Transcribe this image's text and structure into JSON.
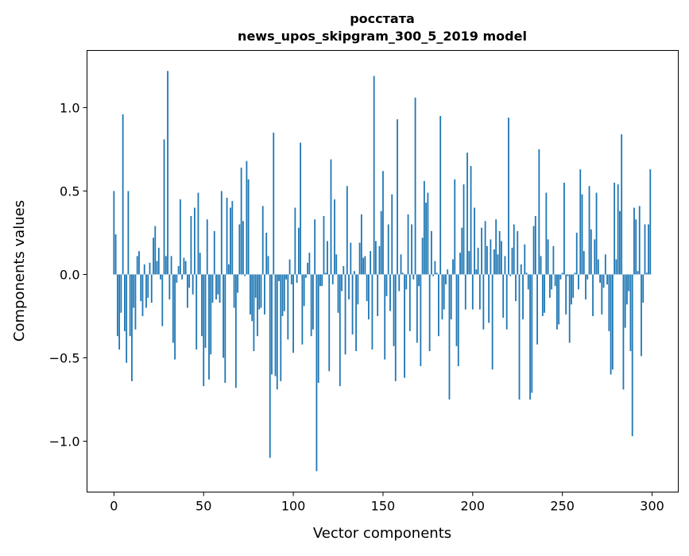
{
  "chart_data": {
    "type": "bar",
    "title": "росстата",
    "subtitle": "news_upos_skipgram_300_5_2019 model",
    "xlabel": "Vector components",
    "ylabel": "Components values",
    "xlim": [
      -15,
      314.6
    ],
    "ylim": [
      -1.305,
      1.343
    ],
    "xticks": [
      0,
      50,
      100,
      150,
      200,
      250,
      300
    ],
    "xtick_labels": [
      "0",
      "50",
      "100",
      "150",
      "200",
      "250",
      "300"
    ],
    "yticks": [
      -1.0,
      -0.5,
      0.0,
      0.5,
      1.0
    ],
    "ytick_labels": [
      "−1.0",
      "−0.5",
      "0.0",
      "0.5",
      "1.0"
    ],
    "grid": false,
    "bar_color": "#1f77b4",
    "values": [
      0.5,
      0.24,
      -0.37,
      -0.45,
      -0.23,
      0.96,
      -0.34,
      -0.53,
      0.5,
      -0.37,
      -0.64,
      -0.2,
      -0.33,
      0.11,
      0.14,
      -0.16,
      -0.25,
      0.06,
      -0.2,
      -0.14,
      0.07,
      -0.17,
      0.22,
      0.29,
      0.08,
      0.16,
      -0.03,
      -0.31,
      0.81,
      0.11,
      1.22,
      -0.15,
      0.11,
      -0.41,
      -0.51,
      -0.05,
      0.05,
      0.45,
      -0.03,
      0.1,
      0.08,
      -0.2,
      -0.08,
      0.35,
      -0.12,
      0.4,
      -0.45,
      0.49,
      0.13,
      -0.37,
      -0.67,
      -0.44,
      0.33,
      -0.63,
      -0.48,
      -0.17,
      0.26,
      -0.15,
      -0.12,
      -0.17,
      0.5,
      -0.5,
      -0.65,
      0.46,
      0.06,
      0.4,
      0.44,
      -0.2,
      -0.68,
      -0.11,
      0.3,
      0.64,
      0.32,
      -0.01,
      0.68,
      0.57,
      -0.24,
      -0.28,
      -0.46,
      -0.14,
      -0.37,
      -0.21,
      -0.2,
      0.41,
      -0.24,
      0.25,
      0.11,
      -1.1,
      -0.6,
      0.85,
      -0.61,
      -0.69,
      -0.04,
      -0.64,
      -0.25,
      -0.22,
      -0.03,
      -0.39,
      0.09,
      -0.06,
      -0.47,
      0.4,
      -0.05,
      0.28,
      0.79,
      -0.42,
      -0.19,
      -0.02,
      0.07,
      0.13,
      -0.37,
      -0.33,
      0.33,
      -1.18,
      -0.65,
      -0.07,
      -0.07,
      0.35,
      0.01,
      0.2,
      -0.58,
      0.69,
      -0.06,
      0.45,
      0.12,
      -0.23,
      -0.67,
      -0.1,
      0.05,
      -0.48,
      0.53,
      -0.15,
      0.19,
      -0.36,
      0.02,
      -0.46,
      -0.18,
      0.19,
      0.36,
      0.1,
      0.11,
      -0.16,
      -0.27,
      0.14,
      -0.45,
      1.19,
      0.2,
      -0.25,
      0.17,
      0.38,
      0.62,
      -0.51,
      -0.13,
      0.3,
      -0.22,
      0.48,
      -0.43,
      -0.64,
      0.93,
      -0.1,
      0.12,
      0.01,
      -0.62,
      -0.09,
      0.36,
      -0.34,
      0.3,
      -0.03,
      1.06,
      -0.41,
      -0.07,
      -0.55,
      0.22,
      0.56,
      0.43,
      0.49,
      -0.46,
      0.26,
      -0.01,
      0.08,
      0.01,
      -0.37,
      0.95,
      -0.27,
      -0.21,
      -0.06,
      0.03,
      -0.75,
      -0.27,
      0.09,
      0.57,
      -0.43,
      -0.55,
      0.13,
      0.28,
      0.54,
      -0.21,
      0.73,
      0.14,
      0.65,
      -0.21,
      0.4,
      0.03,
      0.16,
      -0.21,
      0.28,
      -0.33,
      0.32,
      0.17,
      -0.29,
      0.21,
      -0.57,
      0.15,
      0.33,
      0.12,
      0.26,
      0.2,
      -0.26,
      0.11,
      -0.33,
      0.94,
      -0.01,
      0.16,
      0.3,
      -0.16,
      0.26,
      -0.75,
      0.06,
      -0.27,
      0.18,
      0.01,
      -0.09,
      -0.75,
      -0.71,
      0.29,
      0.35,
      -0.42,
      0.75,
      0.11,
      -0.25,
      -0.23,
      0.49,
      0.21,
      -0.14,
      -0.09,
      0.17,
      -0.07,
      -0.33,
      -0.3,
      -0.03,
      0.01,
      0.55,
      -0.24,
      -0.01,
      -0.41,
      -0.18,
      -0.14,
      0.01,
      0.25,
      -0.09,
      0.63,
      0.48,
      0.14,
      -0.15,
      -0.03,
      0.53,
      0.27,
      -0.25,
      0.21,
      0.49,
      0.09,
      -0.05,
      -0.24,
      -0.08,
      0.12,
      -0.06,
      -0.34,
      -0.6,
      -0.57,
      0.55,
      0.09,
      0.54,
      0.38,
      0.84,
      -0.69,
      -0.32,
      -0.18,
      -0.1,
      -0.46,
      -0.97,
      0.4,
      0.33,
      0.02,
      0.41,
      -0.49,
      -0.17,
      0.3,
      0.01,
      0.3,
      0.63
    ]
  }
}
